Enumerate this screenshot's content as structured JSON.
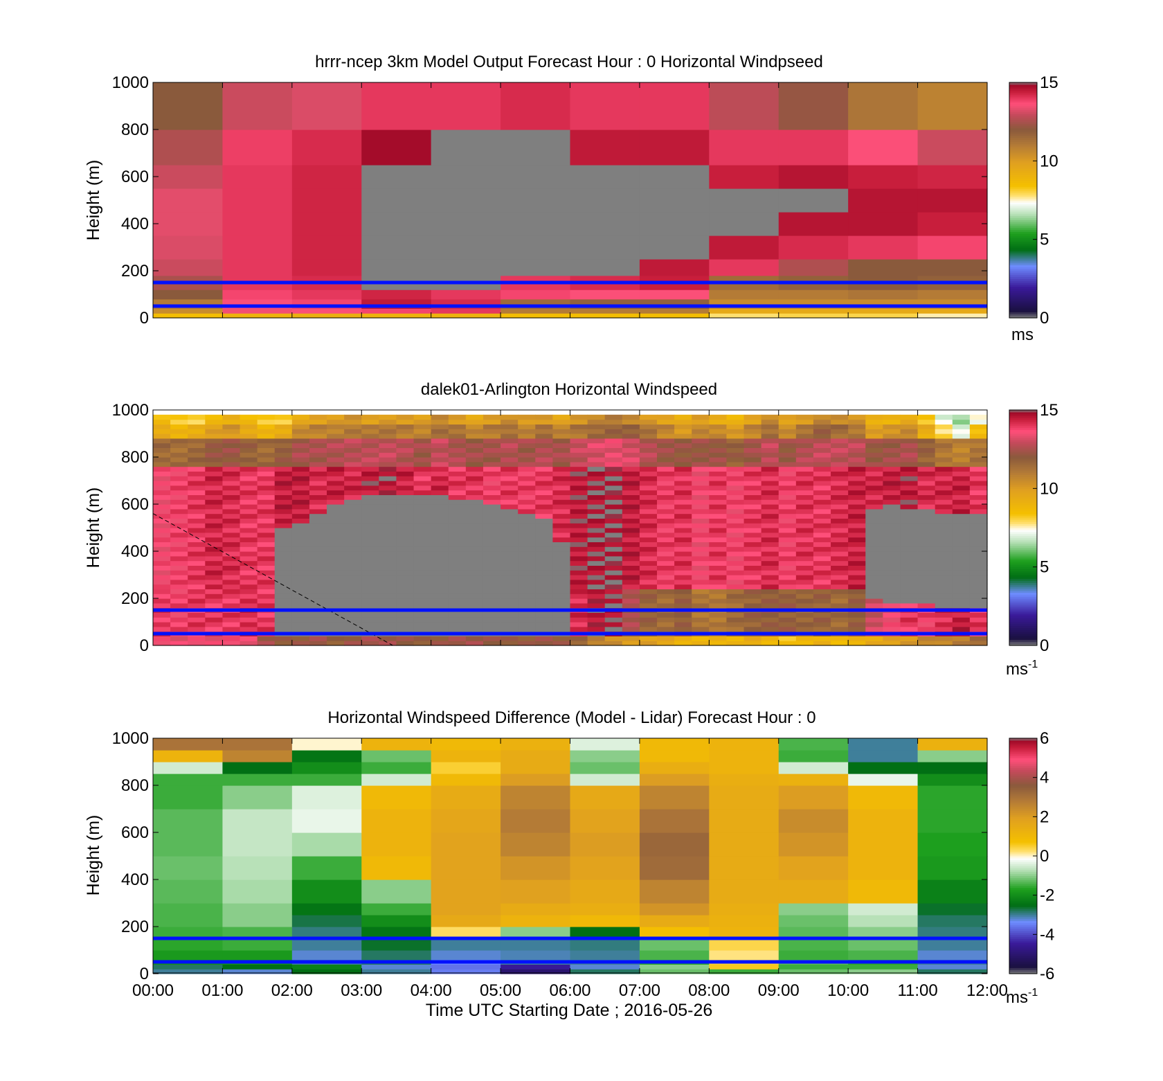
{
  "figure": {
    "xlabel": "Time UTC  Starting Date ; 2016-05-26",
    "xticks": [
      "00:00",
      "01:00",
      "02:00",
      "03:00",
      "04:00",
      "05:00",
      "06:00",
      "07:00",
      "08:00",
      "09:00",
      "10:00",
      "11:00",
      "12:00"
    ]
  },
  "colormaps": {
    "speed": {
      "range": [
        0,
        15
      ],
      "stops": [
        [
          0.0,
          "#7f7f7f"
        ],
        [
          0.03,
          "#1a1040"
        ],
        [
          0.13,
          "#3a1a9a"
        ],
        [
          0.22,
          "#6e8cff"
        ],
        [
          0.29,
          "#006e14"
        ],
        [
          0.36,
          "#1ea01e"
        ],
        [
          0.44,
          "#b6e0b6"
        ],
        [
          0.49,
          "#ffffff"
        ],
        [
          0.52,
          "#ffe070"
        ],
        [
          0.56,
          "#f5c000"
        ],
        [
          0.66,
          "#e0a020"
        ],
        [
          0.74,
          "#b07838"
        ],
        [
          0.8,
          "#8a5a3c"
        ],
        [
          0.86,
          "#c24a5a"
        ],
        [
          0.91,
          "#ff4f7a"
        ],
        [
          0.96,
          "#c81e3c"
        ],
        [
          0.99,
          "#a00a28"
        ],
        [
          1.0,
          "#7f7f7f"
        ]
      ]
    },
    "diff": {
      "range": [
        -6,
        6
      ],
      "stops": [
        [
          0.0,
          "#7f7f7f"
        ],
        [
          0.03,
          "#1a1040"
        ],
        [
          0.13,
          "#3a1a9a"
        ],
        [
          0.22,
          "#6e8cff"
        ],
        [
          0.29,
          "#006e14"
        ],
        [
          0.36,
          "#1ea01e"
        ],
        [
          0.44,
          "#b6e0b6"
        ],
        [
          0.49,
          "#ffffff"
        ],
        [
          0.52,
          "#ffe070"
        ],
        [
          0.56,
          "#f5c000"
        ],
        [
          0.66,
          "#e0a020"
        ],
        [
          0.74,
          "#b07838"
        ],
        [
          0.8,
          "#8a5a3c"
        ],
        [
          0.86,
          "#c24a5a"
        ],
        [
          0.91,
          "#ff4f7a"
        ],
        [
          0.96,
          "#c81e3c"
        ],
        [
          0.99,
          "#a00a28"
        ],
        [
          1.0,
          "#7f7f7f"
        ]
      ]
    }
  },
  "chart_data": [
    {
      "type": "heatmap",
      "title": "hrrr-ncep 3km Model Output   Forecast Hour : 0 Horizontal Windpseed",
      "xlabel": "",
      "ylabel": "Height (m)",
      "ylim": [
        0,
        1000
      ],
      "yticks": [
        "0",
        "200",
        "400",
        "600",
        "800",
        "1000"
      ],
      "colorbar": {
        "ticks": [
          "0",
          "5",
          "10",
          "15"
        ],
        "unit": "ms",
        "unit_exp": ""
      },
      "colormap": "speed",
      "x_hours": [
        0,
        1,
        2,
        3,
        4,
        5,
        6,
        7,
        8,
        9,
        10,
        11,
        12
      ],
      "y_levels": [
        0,
        20,
        40,
        80,
        120,
        180,
        250,
        350,
        450,
        550,
        650,
        800,
        1000
      ],
      "note_rows_bottom_to_top": true,
      "values": [
        [
          8.5,
          9.0,
          9.2,
          9.0,
          9.0,
          8.5,
          8.5,
          8.5,
          7.8,
          8.0,
          8.0,
          7.6
        ],
        [
          10.5,
          13.5,
          13.6,
          13.8,
          14.0,
          11.0,
          11.0,
          11.0,
          9.5,
          9.5,
          9.5,
          9.5
        ],
        [
          11.0,
          13.6,
          13.8,
          14.5,
          14.2,
          11.5,
          11.8,
          11.8,
          10.5,
          10.5,
          10.5,
          10.5
        ],
        [
          12.0,
          13.8,
          14.0,
          14.3,
          14.0,
          13.8,
          13.6,
          13.6,
          11.0,
          11.0,
          11.2,
          11.0
        ],
        [
          12.5,
          14.0,
          14.2,
          0,
          0,
          14.0,
          14.2,
          14.4,
          11.5,
          11.8,
          12.0,
          11.8
        ],
        [
          13.0,
          14.0,
          14.3,
          0,
          0,
          0,
          0,
          14.5,
          14.0,
          12.6,
          12.0,
          12.0
        ],
        [
          13.2,
          14.0,
          14.3,
          0,
          0,
          0,
          0,
          0,
          14.5,
          14.2,
          14.0,
          13.8
        ],
        [
          13.3,
          14.0,
          14.3,
          0,
          0,
          0,
          0,
          0,
          0,
          14.6,
          14.6,
          14.4
        ],
        [
          13.3,
          14.0,
          14.3,
          0,
          0,
          0,
          0,
          0,
          0,
          0,
          14.6,
          14.6
        ],
        [
          13.0,
          14.0,
          14.3,
          0,
          0,
          0,
          0,
          0,
          14.4,
          14.6,
          14.4,
          14.3
        ],
        [
          12.6,
          13.9,
          14.2,
          14.8,
          0,
          0,
          14.5,
          14.5,
          14.0,
          14.0,
          13.6,
          13.0
        ],
        [
          12.0,
          13.0,
          13.2,
          14.0,
          14.0,
          14.2,
          14.0,
          14.0,
          12.8,
          12.2,
          11.2,
          10.8
        ],
        [
          11.2,
          11.5,
          11.4,
          11.8,
          11.3,
          11.8,
          11.4,
          11.6,
          10.5,
          10.5,
          9.8,
          9.6
        ]
      ],
      "reference_lines_m": [
        50,
        150
      ]
    },
    {
      "type": "heatmap",
      "title": "dalek01-Arlington  Horizontal Windspeed",
      "xlabel": "",
      "ylabel": "Height (m)",
      "ylim": [
        0,
        1000
      ],
      "yticks": [
        "0",
        "200",
        "400",
        "600",
        "800",
        "1000"
      ],
      "colorbar": {
        "ticks": [
          "0",
          "5",
          "10",
          "15"
        ],
        "unit": "ms",
        "unit_exp": "-1"
      },
      "colormap": "speed",
      "x_hours": [
        0,
        0.25,
        0.5,
        0.75,
        1.0,
        1.25,
        1.5,
        1.75,
        2.0,
        2.25,
        2.5,
        2.75,
        3.0,
        3.25,
        3.5,
        3.75,
        4.0,
        4.25,
        4.5,
        4.75,
        5.0,
        5.25,
        5.5,
        5.75,
        6.0,
        6.25,
        6.5,
        6.75,
        7.0,
        7.25,
        7.5,
        7.75,
        8.0,
        8.25,
        8.5,
        8.75,
        9.0,
        9.25,
        9.5,
        9.75,
        10.0,
        10.25,
        10.5,
        10.75,
        11.0,
        11.25,
        11.5,
        11.75
      ],
      "gray_top_m": [
        0,
        0,
        0,
        0,
        0,
        0,
        0,
        500,
        530,
        560,
        600,
        620,
        640,
        640,
        650,
        640,
        640,
        630,
        620,
        600,
        580,
        560,
        540,
        450,
        0,
        0,
        0,
        0,
        0,
        0,
        0,
        0,
        0,
        0,
        0,
        0,
        0,
        0,
        0,
        0,
        0,
        580,
        600,
        590,
        580,
        570,
        560,
        570
      ],
      "gray_bottom_m": [
        0,
        0,
        0,
        0,
        0,
        0,
        30,
        30,
        30,
        30,
        30,
        30,
        30,
        30,
        30,
        30,
        30,
        30,
        30,
        30,
        30,
        30,
        30,
        30,
        0,
        0,
        0,
        0,
        0,
        0,
        0,
        0,
        0,
        0,
        0,
        0,
        0,
        0,
        0,
        0,
        0,
        200,
        180,
        180,
        170,
        160,
        150,
        150
      ],
      "upper_layer_speed": [
        9.5,
        9.0,
        9.2,
        9.8,
        10.2,
        9.6,
        9.0,
        9.3,
        10.5,
        10.8,
        10.9,
        11.2,
        11.0,
        11.1,
        11.0,
        10.8,
        11.5,
        11.2,
        10.6,
        11.0,
        11.4,
        10.9,
        11.3,
        10.7,
        11.2,
        11.6,
        11.9,
        11.8,
        11.2,
        10.7,
        10.2,
        10.8,
        10.5,
        10.0,
        10.7,
        11.5,
        10.6,
        11.2,
        11.8,
        11.5,
        11.2,
        10.0,
        10.2,
        10.5,
        9.3,
        8.0,
        7.2,
        8.5
      ],
      "core_speed": [
        13.6,
        13.8,
        14.0,
        14.3,
        14.2,
        14.0,
        14.0,
        14.5,
        14.5,
        14.2,
        14.4,
        14.3,
        14.6,
        14.7,
        14.4,
        14.0,
        14.3,
        14.0,
        14.1,
        13.8,
        14.0,
        13.9,
        14.0,
        14.2,
        14.6,
        14.8,
        14.9,
        14.5,
        14.2,
        13.9,
        14.1,
        13.6,
        14.0,
        13.7,
        14.0,
        14.2,
        13.8,
        14.1,
        14.0,
        14.2,
        14.4,
        14.3,
        14.5,
        14.6,
        14.2,
        14.3,
        14.4,
        14.0
      ],
      "low_speed": [
        14.0,
        13.8,
        14.0,
        14.0,
        14.0,
        14.2,
        14.0,
        14.3,
        14.0,
        14.0,
        14.1,
        14.1,
        14.0,
        14.0,
        14.0,
        14.0,
        14.0,
        14.0,
        14.0,
        14.0,
        14.0,
        14.0,
        14.0,
        14.0,
        14.2,
        14.7,
        14.8,
        12.5,
        11.8,
        11.5,
        12.0,
        11.2,
        11.0,
        11.5,
        11.8,
        12.0,
        11.9,
        11.6,
        11.8,
        11.5,
        12.0,
        13.0,
        13.5,
        14.0,
        13.8,
        14.2,
        14.5,
        14.0
      ],
      "surface_speed": [
        13.8,
        13.5,
        13.6,
        13.4,
        13.5,
        13.6,
        12.5,
        12.0,
        12.0,
        12.2,
        12.0,
        12.3,
        12.5,
        12.3,
        12.0,
        12.1,
        12.2,
        12.4,
        12.3,
        12.0,
        12.2,
        12.1,
        12.3,
        12.0,
        11.5,
        11.0,
        10.5,
        10.0,
        9.8,
        9.5,
        9.2,
        9.0,
        9.0,
        8.8,
        9.2,
        9.0,
        8.5,
        8.8,
        9.0,
        8.5,
        9.2,
        9.5,
        9.8,
        10.0,
        10.5,
        10.8,
        11.0,
        11.5
      ],
      "reference_lines_m": [
        50,
        150
      ],
      "dashed_line": {
        "from": [
          0,
          560
        ],
        "to": [
          3.45,
          0
        ]
      }
    },
    {
      "type": "heatmap",
      "title": "Horizontal Windspeed Difference (Model - Lidar) Forecast Hour : 0",
      "xlabel": "Time UTC  Starting Date ; 2016-05-26",
      "ylabel": "Height (m)",
      "ylim": [
        0,
        1000
      ],
      "yticks": [
        "0",
        "200",
        "400",
        "600",
        "800",
        "1000"
      ],
      "colorbar": {
        "ticks": [
          "-6",
          "-4",
          "-2",
          "0",
          "2",
          "4",
          "6"
        ],
        "unit": "ms",
        "unit_exp": "-1"
      },
      "colormap": "diff",
      "x_hours": [
        0,
        1,
        2,
        3,
        4,
        5,
        6,
        7,
        8,
        9,
        10,
        11,
        12
      ],
      "y_levels": [
        0,
        20,
        40,
        60,
        100,
        150,
        200,
        250,
        300,
        400,
        500,
        600,
        700,
        800,
        850,
        900,
        950,
        1000
      ],
      "values": [
        [
          -3.0,
          -3.2,
          -2.5,
          -3.0,
          -3.5,
          -5.0,
          -2.8,
          -1.2,
          -1.5,
          -1.2,
          -1.0,
          -2.8
        ],
        [
          -2.8,
          -2.5,
          -2.2,
          -3.2,
          -3.6,
          -4.5,
          -3.2,
          -1.0,
          0.6,
          -1.5,
          -1.5,
          -3.2
        ],
        [
          -2.0,
          -2.0,
          -3.0,
          -2.8,
          -3.4,
          -3.0,
          -3.0,
          -1.6,
          0.5,
          -1.3,
          -1.6,
          -3.0
        ],
        [
          -1.8,
          -1.8,
          -3.2,
          -2.8,
          -3.2,
          -3.1,
          -3.0,
          -1.4,
          0.2,
          -1.5,
          -1.4,
          -3.2
        ],
        [
          -1.6,
          -1.5,
          -3.0,
          -2.6,
          -3.0,
          -3.0,
          -2.9,
          -1.2,
          0.4,
          -1.4,
          -1.2,
          -3.0
        ],
        [
          -1.5,
          -1.4,
          -2.9,
          -2.4,
          0.3,
          -1.0,
          -2.5,
          0.8,
          1.2,
          -1.3,
          -1.0,
          -2.9
        ],
        [
          -1.4,
          -1.0,
          -2.7,
          -2.0,
          1.6,
          1.2,
          1.0,
          1.5,
          1.3,
          -1.2,
          -0.7,
          -2.8
        ],
        [
          -1.4,
          -1.0,
          -2.4,
          -1.5,
          1.8,
          1.5,
          1.4,
          2.2,
          1.4,
          -1.0,
          -0.5,
          -2.6
        ],
        [
          -1.3,
          -0.8,
          -2.0,
          -1.0,
          1.8,
          1.9,
          1.6,
          2.6,
          1.5,
          1.5,
          1.0,
          -2.2
        ],
        [
          -1.2,
          -0.7,
          -1.5,
          1.0,
          1.8,
          2.2,
          1.8,
          3.2,
          1.5,
          1.8,
          1.2,
          -1.8
        ],
        [
          -1.3,
          -0.6,
          -0.8,
          1.2,
          1.8,
          2.6,
          2.0,
          3.3,
          1.5,
          2.2,
          1.2,
          -1.7
        ],
        [
          -1.3,
          -0.6,
          -0.3,
          1.2,
          1.7,
          2.8,
          1.8,
          3.0,
          1.5,
          2.4,
          1.2,
          -1.6
        ],
        [
          -1.5,
          -1.0,
          -0.4,
          1.0,
          1.5,
          2.6,
          1.6,
          2.6,
          1.5,
          2.0,
          1.0,
          -1.6
        ],
        [
          -1.5,
          -1.5,
          -1.5,
          -0.5,
          1.0,
          2.0,
          -0.5,
          2.0,
          1.4,
          1.3,
          -0.3,
          -2.0
        ],
        [
          -0.5,
          -2.5,
          -2.0,
          -1.5,
          0.5,
          1.5,
          -1.2,
          1.4,
          1.2,
          -0.5,
          -2.5,
          -2.5
        ],
        [
          1.2,
          2.6,
          -2.4,
          -1.2,
          1.2,
          1.5,
          -1.0,
          1.0,
          1.2,
          -1.5,
          -3.0,
          -1.0
        ],
        [
          3.0,
          3.0,
          0.0,
          1.2,
          1.0,
          1.3,
          -0.4,
          1.0,
          1.2,
          -1.4,
          -3.0,
          1.3
        ]
      ],
      "reference_lines_m": [
        50,
        150
      ]
    }
  ]
}
